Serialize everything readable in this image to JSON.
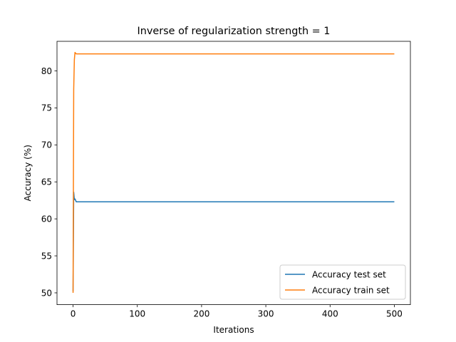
{
  "chart_data": {
    "type": "line",
    "title": "Inverse of regularization strength = 1",
    "xlabel": "Iterations",
    "ylabel": "Accuracy (%)",
    "xlim": [
      -25,
      525
    ],
    "ylim": [
      48.4,
      84.0
    ],
    "xticks": [
      0,
      100,
      200,
      300,
      400,
      500
    ],
    "yticks": [
      50,
      55,
      60,
      65,
      70,
      75,
      80
    ],
    "grid": false,
    "legend_position": "lower right",
    "series": [
      {
        "name": "Accuracy test set",
        "color": "#1f77b4",
        "points": [
          [
            0,
            50.2
          ],
          [
            1,
            63.6
          ],
          [
            2,
            62.6
          ],
          [
            3,
            62.7
          ],
          [
            4,
            62.5
          ],
          [
            5,
            62.3
          ],
          [
            10,
            62.3
          ],
          [
            100,
            62.3
          ],
          [
            200,
            62.3
          ],
          [
            300,
            62.3
          ],
          [
            400,
            62.3
          ],
          [
            500,
            62.3
          ]
        ]
      },
      {
        "name": "Accuracy train set",
        "color": "#ff7f0e",
        "points": [
          [
            0,
            50.0
          ],
          [
            1,
            77.5
          ],
          [
            2,
            81.5
          ],
          [
            3,
            82.5
          ],
          [
            4,
            82.4
          ],
          [
            5,
            82.3
          ],
          [
            10,
            82.3
          ],
          [
            100,
            82.3
          ],
          [
            200,
            82.3
          ],
          [
            300,
            82.3
          ],
          [
            400,
            82.3
          ],
          [
            500,
            82.3
          ]
        ]
      }
    ]
  }
}
